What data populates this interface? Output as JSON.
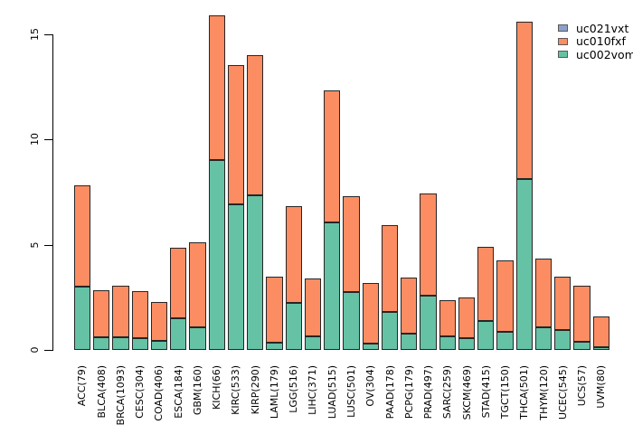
{
  "figure": {
    "background": "#ffffff"
  },
  "legend": {
    "position": "top-right",
    "items": [
      {
        "label": "uc021vxt",
        "color": "#8da0cb"
      },
      {
        "label": "uc010fxf",
        "color": "#fc8d62"
      },
      {
        "label": "uc002vom",
        "color": "#66c2a5"
      }
    ]
  },
  "chart_data": {
    "type": "bar",
    "stacked": true,
    "title": "",
    "xlabel": "",
    "ylabel": "",
    "ylim": [
      0,
      15
    ],
    "yticks": [
      0,
      5,
      10,
      15
    ],
    "grid": false,
    "legend_position": "top-right",
    "bar_border_color": "#262626",
    "categories": [
      "ACC(79)",
      "BLCA(408)",
      "BRCA(1093)",
      "CESC(304)",
      "COAD(406)",
      "ESCA(184)",
      "GBM(160)",
      "KICH(66)",
      "KIRC(533)",
      "KIRP(290)",
      "LAML(179)",
      "LGG(516)",
      "LIHC(371)",
      "LUAD(515)",
      "LUSC(501)",
      "OV(304)",
      "PAAD(178)",
      "PCPG(179)",
      "PRAD(497)",
      "SARC(259)",
      "SKCM(469)",
      "STAD(415)",
      "TGCT(150)",
      "THCA(501)",
      "THYM(120)",
      "UCEC(545)",
      "UCS(57)",
      "UVM(80)"
    ],
    "series": [
      {
        "name": "uc002vom",
        "color": "#66c2a5",
        "values": [
          3.0,
          0.6,
          0.6,
          0.55,
          0.45,
          1.5,
          1.1,
          9.0,
          6.9,
          7.35,
          0.35,
          2.25,
          0.65,
          6.05,
          2.75,
          0.3,
          1.8,
          0.8,
          2.6,
          0.65,
          0.55,
          1.4,
          0.85,
          8.1,
          1.1,
          0.95,
          0.4,
          0.15
        ]
      },
      {
        "name": "uc010fxf",
        "color": "#fc8d62",
        "values": [
          4.8,
          2.25,
          2.45,
          2.25,
          1.85,
          3.35,
          4.0,
          6.9,
          6.6,
          6.65,
          3.15,
          4.6,
          2.75,
          6.25,
          4.55,
          2.9,
          4.15,
          2.65,
          4.85,
          1.7,
          1.95,
          3.5,
          3.4,
          7.5,
          3.25,
          2.55,
          2.65,
          1.45
        ]
      },
      {
        "name": "uc021vxt",
        "color": "#8da0cb",
        "values": [
          0,
          0,
          0,
          0,
          0,
          0,
          0,
          0,
          0,
          0,
          0,
          0,
          0,
          0,
          0,
          0,
          0,
          0,
          0,
          0,
          0,
          0,
          0,
          0,
          0,
          0,
          0,
          0
        ]
      }
    ],
    "totals": [
      7.8,
      2.85,
      3.05,
      2.8,
      2.3,
      4.85,
      5.1,
      15.9,
      13.5,
      14.0,
      3.5,
      6.85,
      3.4,
      12.3,
      7.3,
      3.2,
      5.95,
      3.45,
      7.45,
      2.35,
      2.5,
      4.9,
      4.25,
      15.6,
      4.35,
      3.5,
      3.05,
      1.6
    ]
  }
}
